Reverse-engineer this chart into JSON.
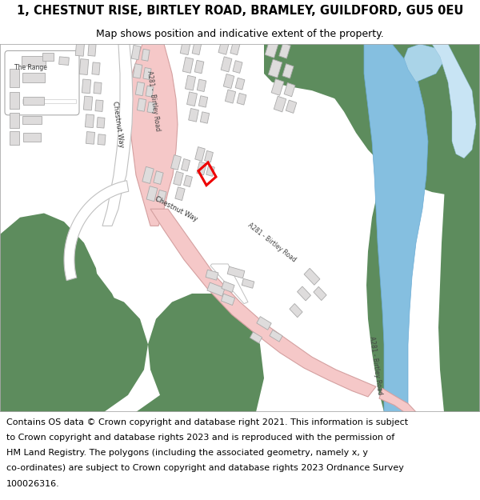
{
  "title": "1, CHESTNUT RISE, BIRTLEY ROAD, BRAMLEY, GUILDFORD, GU5 0EU",
  "subtitle": "Map shows position and indicative extent of the property.",
  "footer_lines": [
    "Contains OS data © Crown copyright and database right 2021. This information is subject",
    "to Crown copyright and database rights 2023 and is reproduced with the permission of",
    "HM Land Registry. The polygons (including the associated geometry, namely x, y",
    "co-ordinates) are subject to Crown copyright and database rights 2023 Ordnance Survey",
    "100026316."
  ],
  "title_fontsize": 10.5,
  "subtitle_fontsize": 9,
  "footer_fontsize": 8,
  "map_bg": "#ffffff",
  "green_color": "#5d8c5d",
  "road_color": "#f5c8c8",
  "road_edge_color": "#d4a0a0",
  "water_color": "#85bfe0",
  "water_edge_color": "#6aaad4",
  "building_color": "#dedcdc",
  "building_edge_color": "#aaaaaa",
  "property_edge_color": "#ee0000",
  "text_color": "#333333"
}
